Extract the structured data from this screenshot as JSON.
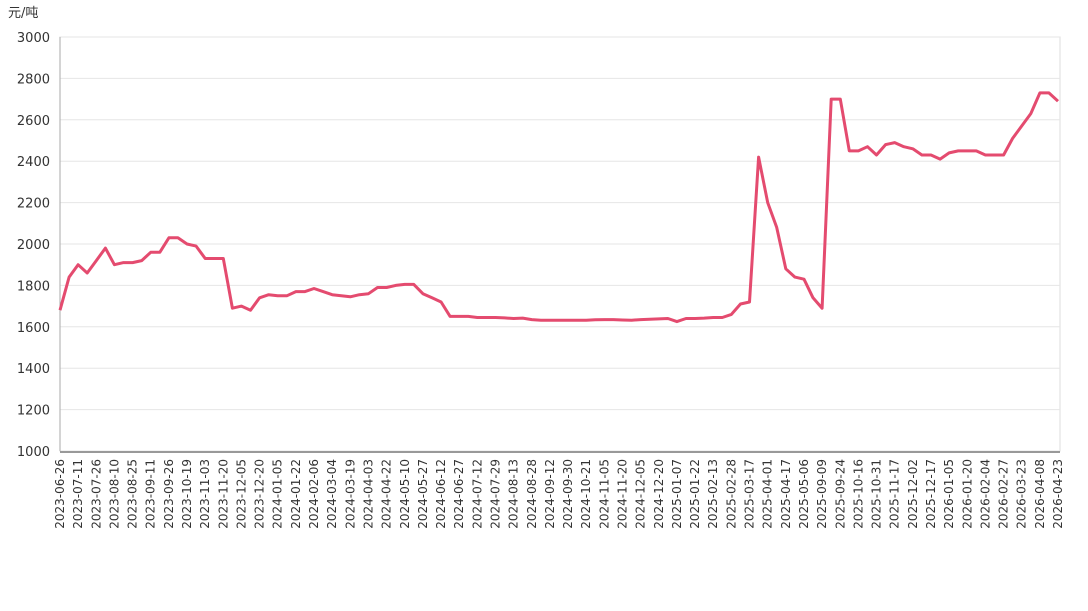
{
  "chart_data": {
    "type": "line",
    "y_unit": "元/吨",
    "categories": [
      "2023-06-26",
      null,
      "2023-07-11",
      null,
      "2023-07-26",
      null,
      "2023-08-10",
      null,
      "2023-08-25",
      null,
      "2023-09-11",
      null,
      "2023-09-26",
      null,
      "2023-10-19",
      null,
      "2023-11-03",
      null,
      "2023-11-20",
      null,
      "2023-12-05",
      null,
      "2023-12-20",
      null,
      "2024-01-05",
      null,
      "2024-01-22",
      null,
      "2024-02-06",
      null,
      "2024-03-04",
      null,
      "2024-03-19",
      null,
      "2024-04-03",
      null,
      "2024-04-22",
      null,
      "2024-05-10",
      null,
      "2024-05-27",
      null,
      "2024-06-12",
      null,
      "2024-06-27",
      null,
      "2024-07-12",
      null,
      "2024-07-29",
      null,
      "2024-08-13",
      null,
      "2024-08-28",
      null,
      "2024-09-12",
      null,
      "2024-09-30",
      null,
      "2024-10-21",
      null,
      "2024-11-05",
      null,
      "2024-11-20",
      null,
      "2024-12-05",
      null,
      "2024-12-20",
      null,
      "2025-01-07",
      null,
      "2025-01-22",
      null,
      "2025-02-13",
      null,
      "2025-02-28",
      null,
      "2025-03-17",
      null,
      "2025-04-01",
      null,
      "2025-04-17",
      null,
      "2025-05-06",
      null,
      "2025-09-09",
      null,
      "2025-09-24",
      null,
      "2025-10-16",
      null,
      "2025-10-31",
      null,
      "2025-11-17",
      null,
      "2025-12-02",
      null,
      "2025-12-17",
      null,
      "2026-01-05",
      null,
      "2026-01-20",
      null,
      "2026-02-04",
      null,
      "2026-02-27",
      null,
      "2026-03-23",
      null,
      "2026-04-08",
      null,
      "2026-04-23"
    ],
    "values": [
      1680,
      1840,
      1900,
      1860,
      1920,
      1980,
      1900,
      1910,
      1910,
      1920,
      1960,
      1960,
      2030,
      2030,
      2000,
      1990,
      1930,
      1930,
      1930,
      1690,
      1700,
      1680,
      1740,
      1755,
      1750,
      1750,
      1770,
      1770,
      1785,
      1770,
      1755,
      1750,
      1745,
      1755,
      1760,
      1790,
      1790,
      1800,
      1805,
      1805,
      1760,
      1740,
      1720,
      1650,
      1650,
      1650,
      1645,
      1645,
      1645,
      1643,
      1640,
      1642,
      1635,
      1632,
      1632,
      1632,
      1632,
      1632,
      1632,
      1634,
      1635,
      1635,
      1633,
      1632,
      1635,
      1636,
      1638,
      1640,
      1625,
      1640,
      1640,
      1642,
      1645,
      1645,
      1660,
      1710,
      1720,
      2420,
      2200,
      2080,
      1880,
      1840,
      1830,
      1740,
      1690,
      2700,
      2700,
      2450,
      2450,
      2470,
      2430,
      2480,
      2490,
      2470,
      2460,
      2430,
      2430,
      2410,
      2440,
      2450,
      2450,
      2450,
      2430,
      2430,
      2430,
      2510,
      2570,
      2630,
      2730,
      2730,
      2690
    ],
    "color": "#e44b6f",
    "ylim": [
      1000,
      3000
    ],
    "yticks": [
      1000,
      1200,
      1400,
      1600,
      1800,
      2000,
      2200,
      2400,
      2600,
      2800,
      3000
    ],
    "grid": true
  }
}
